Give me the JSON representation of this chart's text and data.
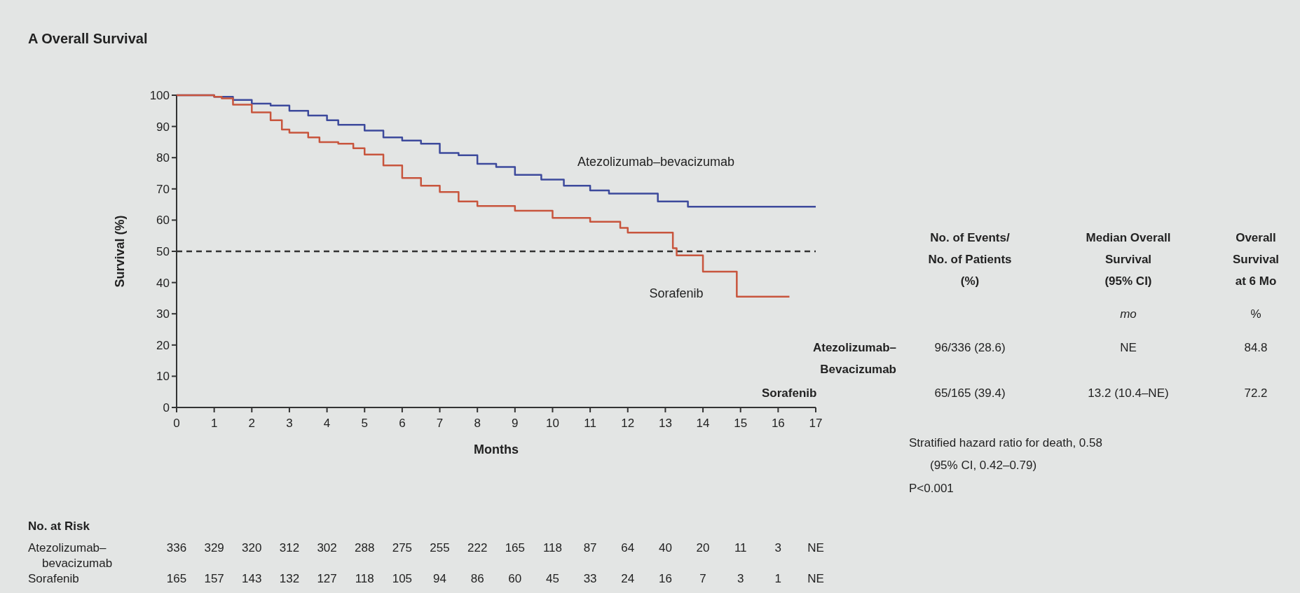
{
  "chart_data": {
    "type": "step",
    "title": "A  Overall Survival",
    "xlabel": "Months",
    "ylabel": "Survival (%)",
    "xlim": [
      0,
      17
    ],
    "xticks": [
      0,
      1,
      2,
      3,
      4,
      5,
      6,
      7,
      8,
      9,
      10,
      11,
      12,
      13,
      14,
      15,
      16,
      17
    ],
    "ylim": [
      0,
      100
    ],
    "yticks": [
      0,
      10,
      20,
      30,
      40,
      50,
      60,
      70,
      80,
      90,
      100
    ],
    "legend": false,
    "grid": false,
    "ref_lines": [
      {
        "axis": "y",
        "value": 50,
        "line_style": "dashed",
        "color": "#333333"
      }
    ],
    "series": [
      {
        "name": "Atezolizumab–bevacizumab",
        "color": "#3d4a9c",
        "x": [
          0,
          1,
          1.5,
          2,
          2.5,
          3,
          3.5,
          4,
          4.3,
          5,
          5.5,
          6,
          6.5,
          7,
          7.5,
          8,
          8.5,
          9,
          9.7,
          10.3,
          11,
          11.5,
          12,
          12.8,
          13.6,
          17
        ],
        "values": [
          100,
          99.5,
          98.5,
          97.3,
          96.7,
          95,
          93.5,
          92,
          90.5,
          88.7,
          86.5,
          85.5,
          84.5,
          81.5,
          80.8,
          78,
          77,
          74.5,
          73,
          71,
          69.5,
          68.5,
          68.5,
          66,
          64.3,
          64.3
        ]
      },
      {
        "name": "Sorafenib",
        "color": "#c8553d",
        "x": [
          0,
          1,
          1.2,
          1.5,
          2,
          2.5,
          2.8,
          3,
          3.5,
          3.8,
          4.3,
          4.7,
          5,
          5.5,
          6,
          6.5,
          7,
          7.5,
          8,
          9,
          10,
          11,
          11.8,
          12,
          13.2,
          13.3,
          14,
          14.9,
          16.3
        ],
        "values": [
          100,
          99.5,
          99,
          97,
          94.5,
          92,
          89,
          88,
          86.5,
          85,
          84.5,
          83,
          81,
          77.5,
          73.5,
          71,
          69,
          66,
          64.5,
          63,
          60.7,
          59.5,
          57.5,
          56,
          51,
          48.7,
          43.5,
          35.5,
          35.5
        ]
      }
    ],
    "annotations": [
      "No. of Events/\nNo. of Patients\n(%)",
      "Median Overall\nSurvival\n(95% CI)",
      "Overall\nSurvival\nat 6 Mo",
      "mo",
      "%",
      "Atezolizumab–\nBevacizumab",
      "96/336 (28.6)",
      "NE",
      "84.8",
      "Sorafenib",
      "65/165 (39.4)",
      "13.2 (10.4–NE)",
      "72.2",
      "Stratified hazard ratio for death, 0.58",
      "(95% CI, 0.42–0.79)",
      "P<0.001",
      "No. at Risk",
      "Atezolizumab–\nbevacizumab",
      "Sorafenib",
      "336 329 320 312 302 288 275 255 222 165 118 87 64 40 20 11 3 NE",
      "165 157 143 132 127 118 105 94 86 60 45 33 24 16 7 3 1 NE"
    ]
  }
}
